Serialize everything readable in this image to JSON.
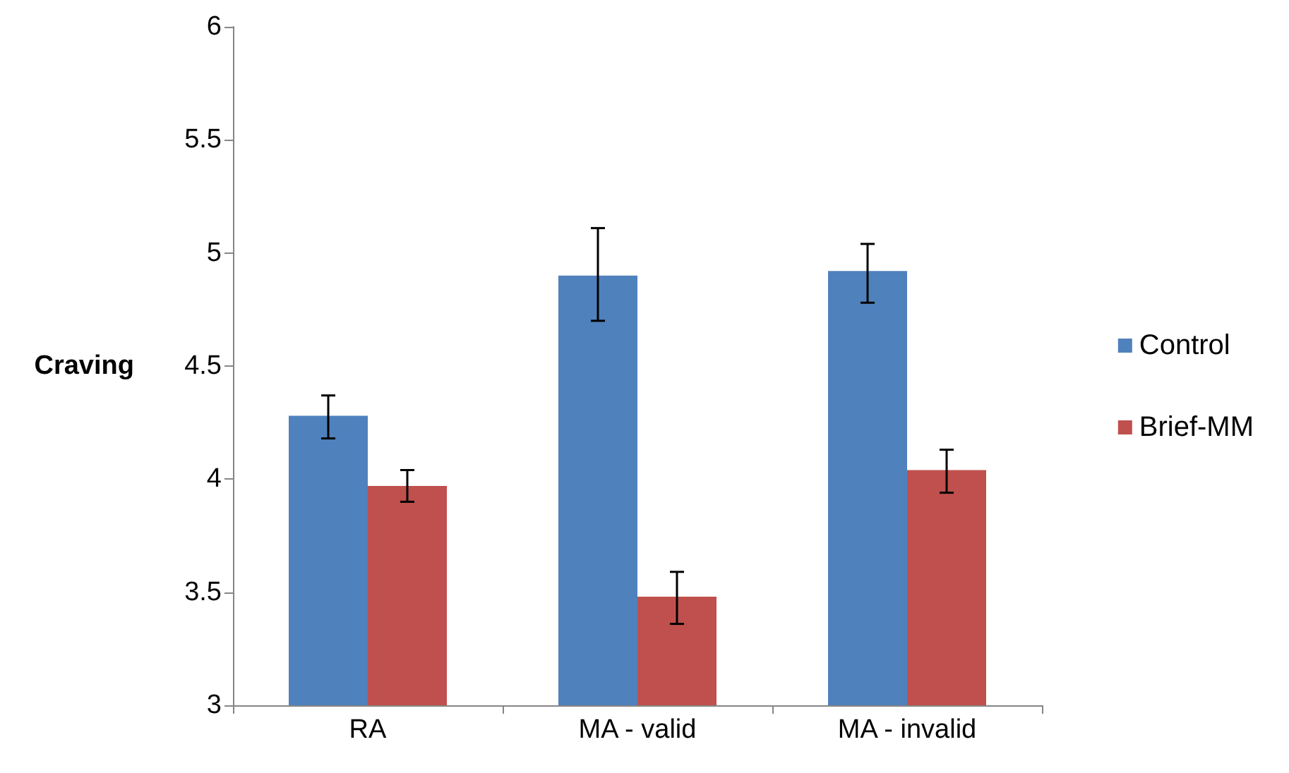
{
  "chart_data": {
    "type": "bar",
    "ylabel": "Craving",
    "categories": [
      "RA",
      "MA - valid",
      "MA - invalid"
    ],
    "series": [
      {
        "name": "Control",
        "color": "#4f81bd",
        "values": [
          4.28,
          4.9,
          4.92
        ],
        "errors": [
          [
            4.18,
            4.37
          ],
          [
            4.7,
            5.11
          ],
          [
            4.78,
            5.04
          ]
        ]
      },
      {
        "name": "Brief-MM",
        "color": "#c0504d",
        "values": [
          3.97,
          3.48,
          4.04
        ],
        "errors": [
          [
            3.9,
            4.04
          ],
          [
            3.36,
            3.59
          ],
          [
            3.94,
            4.13
          ]
        ]
      }
    ],
    "ylim": [
      3,
      6
    ],
    "yticks": [
      3,
      3.5,
      4,
      4.5,
      5,
      5.5,
      6
    ],
    "grid": false,
    "legend": "right"
  }
}
